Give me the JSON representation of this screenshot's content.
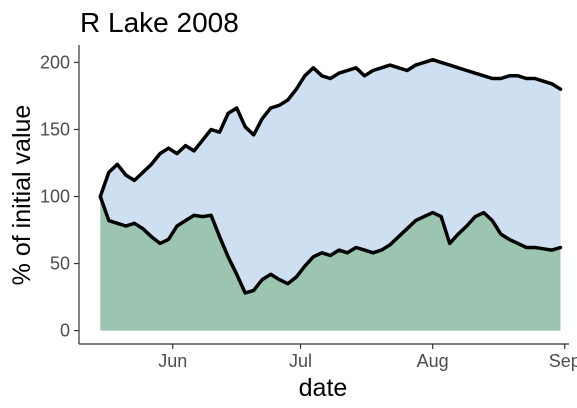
{
  "chart_data": {
    "type": "area",
    "title": "R Lake 2008",
    "xlabel": "date",
    "ylabel": "% of initial value",
    "x_ticks": [
      "Jun",
      "Jul",
      "Aug",
      "Sep"
    ],
    "x_tick_dates": [
      "2008-06-01",
      "2008-07-01",
      "2008-08-01",
      "2008-09-01"
    ],
    "y_ticks": [
      0,
      50,
      100,
      150,
      200
    ],
    "xlim": [
      "2008-05-10",
      "2008-09-02"
    ],
    "ylim": [
      -10,
      213
    ],
    "grid": false,
    "legend": "none",
    "x": [
      "2008-05-15",
      "2008-05-17",
      "2008-05-19",
      "2008-05-21",
      "2008-05-23",
      "2008-05-25",
      "2008-05-27",
      "2008-05-29",
      "2008-05-31",
      "2008-06-02",
      "2008-06-04",
      "2008-06-06",
      "2008-06-08",
      "2008-06-10",
      "2008-06-12",
      "2008-06-14",
      "2008-06-16",
      "2008-06-18",
      "2008-06-20",
      "2008-06-22",
      "2008-06-24",
      "2008-06-26",
      "2008-06-28",
      "2008-06-30",
      "2008-07-02",
      "2008-07-04",
      "2008-07-06",
      "2008-07-08",
      "2008-07-10",
      "2008-07-12",
      "2008-07-14",
      "2008-07-16",
      "2008-07-18",
      "2008-07-20",
      "2008-07-22",
      "2008-07-24",
      "2008-07-26",
      "2008-07-28",
      "2008-07-30",
      "2008-08-01",
      "2008-08-03",
      "2008-08-05",
      "2008-08-07",
      "2008-08-09",
      "2008-08-11",
      "2008-08-13",
      "2008-08-15",
      "2008-08-17",
      "2008-08-19",
      "2008-08-21",
      "2008-08-23",
      "2008-08-25",
      "2008-08-27",
      "2008-08-29",
      "2008-08-31"
    ],
    "series": [
      {
        "role": "lower",
        "color": "#9bc5b1",
        "values": [
          100,
          82,
          80,
          78,
          80,
          76,
          70,
          65,
          68,
          78,
          82,
          86,
          85,
          86,
          70,
          55,
          42,
          28,
          30,
          38,
          42,
          38,
          35,
          40,
          48,
          55,
          58,
          56,
          60,
          58,
          62,
          60,
          58,
          60,
          64,
          70,
          76,
          82,
          85,
          88,
          85,
          65,
          72,
          78,
          85,
          88,
          82,
          72,
          68,
          65,
          62,
          62,
          61,
          60,
          62
        ]
      },
      {
        "role": "upper",
        "color": "#cddff0",
        "values": [
          100,
          118,
          124,
          116,
          112,
          118,
          124,
          132,
          136,
          132,
          138,
          134,
          142,
          150,
          148,
          162,
          166,
          152,
          146,
          158,
          166,
          168,
          172,
          180,
          190,
          196,
          190,
          188,
          192,
          194,
          196,
          190,
          194,
          196,
          198,
          196,
          194,
          198,
          200,
          202,
          200,
          198,
          196,
          194,
          192,
          190,
          188,
          188,
          190,
          190,
          188,
          188,
          186,
          184,
          180
        ]
      }
    ]
  }
}
